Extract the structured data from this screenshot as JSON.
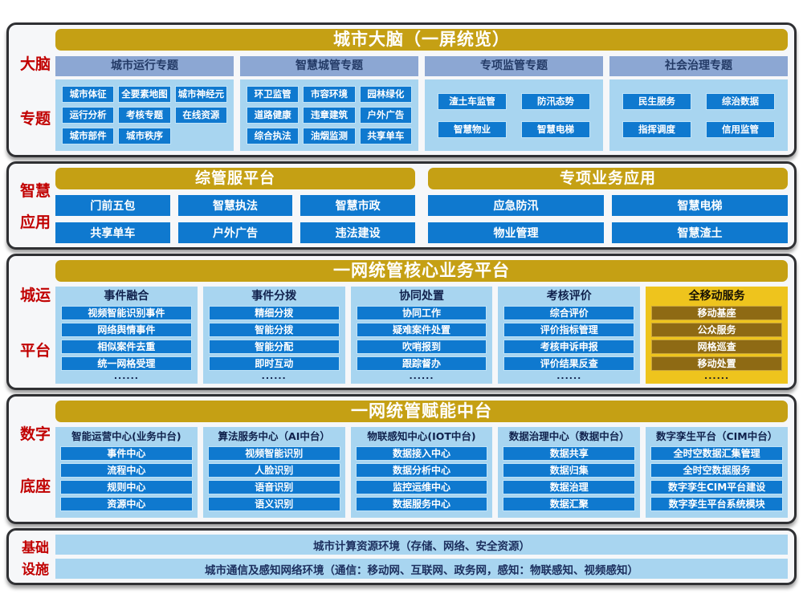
{
  "colors": {
    "gold_header": "#c5a014",
    "steel_column_header": "#8ca7d3",
    "light_blue_panel": "#a8d5f0",
    "blue_item": "#0f79cf",
    "gold_panel": "#eec41d",
    "brown_item": "#8e6a14",
    "red_side_label": "#c10000",
    "box_background": "#f6f7f9",
    "box_border": "#2f3033"
  },
  "sections": {
    "brain": {
      "side": [
        "大脑",
        "专题"
      ],
      "header": "城市大脑（一屏统览）",
      "columns": [
        {
          "title": "城市运行专题",
          "per_row": 3,
          "items": [
            "城市体征",
            "全要素地图",
            "城市神经元",
            "运行分析",
            "考核专题",
            "在线资源",
            "城市部件",
            "城市秩序"
          ]
        },
        {
          "title": "智慧城管专题",
          "per_row": 3,
          "items": [
            "环卫监管",
            "市容环境",
            "园林绿化",
            "道路健康",
            "违章建筑",
            "户外广告",
            "综合执法",
            "油烟监测",
            "共享单车"
          ]
        },
        {
          "title": "专项监管专题",
          "per_row": 2,
          "items": [
            "渣土车监管",
            "防汛态势",
            "智慧物业",
            "智慧电梯"
          ]
        },
        {
          "title": "社会治理专题",
          "per_row": 2,
          "items": [
            "民生服务",
            "综治数据",
            "指挥调度",
            "信用监管"
          ]
        }
      ]
    },
    "apps": {
      "side": [
        "智慧",
        "应用"
      ],
      "groups": [
        {
          "header": "综管服平台",
          "per_row": 3,
          "items": [
            "门前五包",
            "智慧执法",
            "智慧市政",
            "共享单车",
            "户外广告",
            "违法建设"
          ]
        },
        {
          "header": "专项业务应用",
          "per_row": 2,
          "items": [
            "应急防汛",
            "智慧电梯",
            "物业管理",
            "智慧渣土"
          ]
        }
      ]
    },
    "platform": {
      "side": [
        "城运",
        "平台"
      ],
      "header": "一网统管核心业务平台",
      "dots": "......",
      "columns": [
        {
          "title": "事件融合",
          "items": [
            "视频智能识别事件",
            "网络舆情事件",
            "相似案件去重",
            "统一网格受理"
          ]
        },
        {
          "title": "事件分拨",
          "items": [
            "精细分拨",
            "智能分拨",
            "智能分配",
            "即时互动"
          ]
        },
        {
          "title": "协同处置",
          "items": [
            "协同工作",
            "疑难案件处置",
            "吹哨报到",
            "跟踪督办"
          ]
        },
        {
          "title": "考核评价",
          "items": [
            "综合评价",
            "评价指标管理",
            "考核申诉申报",
            "评价结果反查"
          ]
        },
        {
          "title": "全移动服务",
          "theme": "gold",
          "items": [
            "移动基座",
            "公众服务",
            "网格巡查",
            "移动处置"
          ]
        }
      ]
    },
    "midplatform": {
      "side": [
        "数字",
        "底座"
      ],
      "header": "一网统管赋能中台",
      "columns": [
        {
          "title": "智能运营中心(业务中台)",
          "items": [
            "事件中心",
            "流程中心",
            "规则中心",
            "资源中心"
          ]
        },
        {
          "title": "算法服务中心（AI中台）",
          "items": [
            "视频智能识别",
            "人脸识别",
            "语音识别",
            "语义识别"
          ]
        },
        {
          "title": "物联感知中心(IOT中台)",
          "items": [
            "数据接入中心",
            "数据分析中心",
            "监控运维中心",
            "数据服务中心"
          ]
        },
        {
          "title": "数据治理中心（数据中台）",
          "items": [
            "数据共享",
            "数据归集",
            "数据治理",
            "数据汇聚"
          ]
        },
        {
          "title": "数字孪生平台（CIM中台）",
          "items": [
            "全时空数据汇集管理",
            "全时空数据服务",
            "数字孪生CIM平台建设",
            "数字孪生平台系统模块"
          ]
        }
      ]
    },
    "infra": {
      "side": [
        "基础",
        "设施"
      ],
      "bars": [
        "城市计算资源环境（存储、网络、安全资源）",
        "城市通信及感知网络环境（通信：移动网、互联网、政务网，感知：物联感知、视频感知）"
      ]
    }
  }
}
